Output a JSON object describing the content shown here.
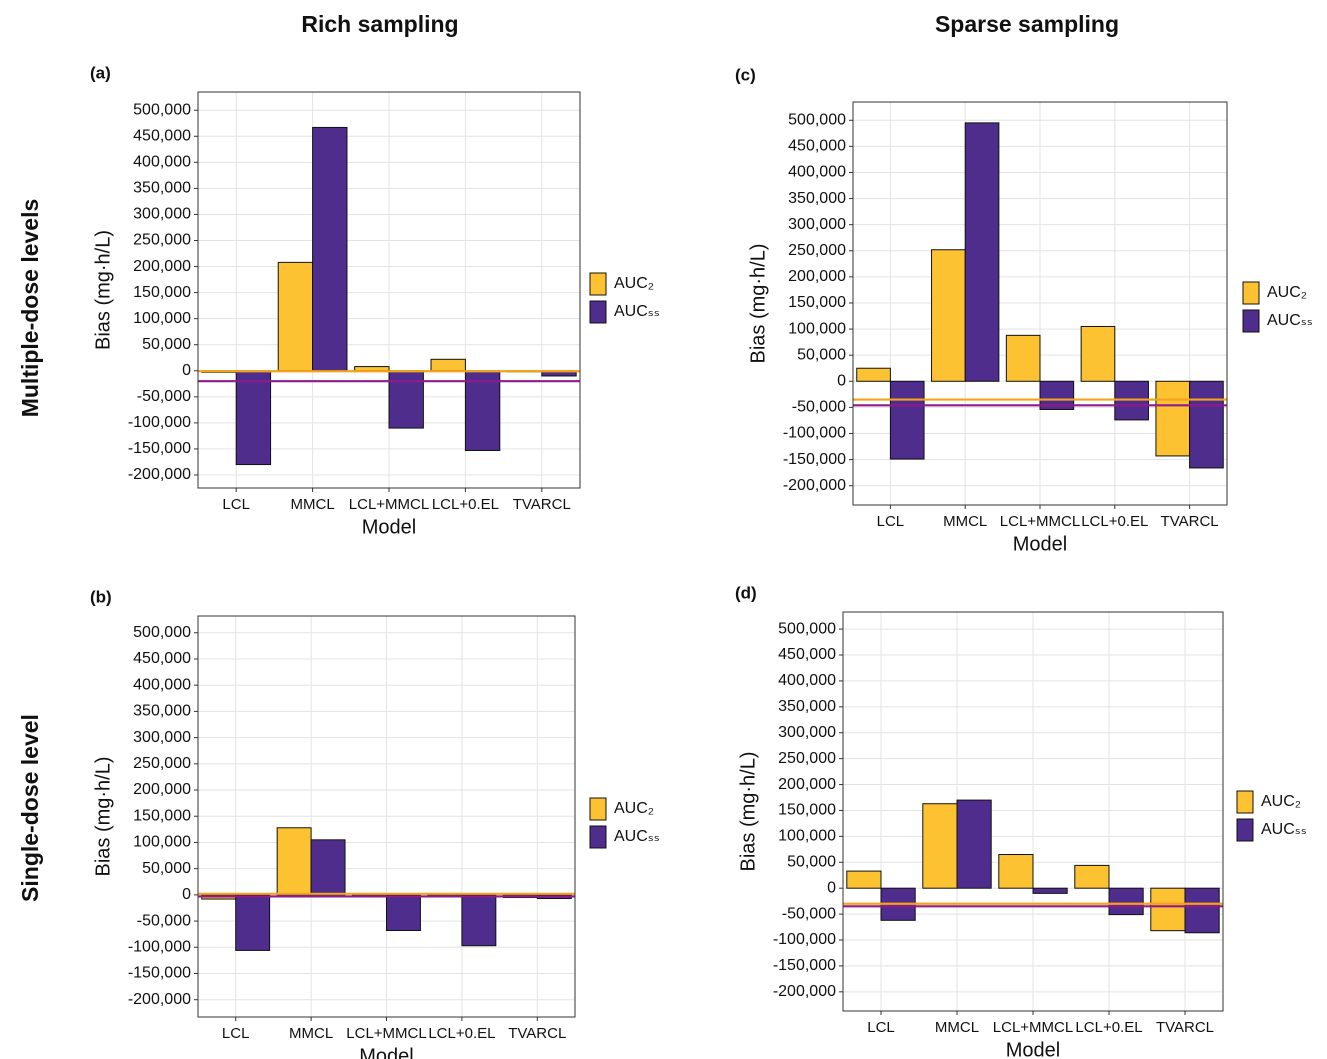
{
  "column_titles": [
    "Rich sampling",
    "Sparse sampling"
  ],
  "row_titles": [
    "Multiple-dose levels",
    "Single-dose level"
  ],
  "chart_data": [
    {
      "type": "bar",
      "panel_label": "(a)",
      "x_label": "Model",
      "y_label": "Bias (mg·h/L)",
      "categories": [
        "LCL",
        "MMCL",
        "LCL+MMCL",
        "LCL+0.EL",
        "TVARCL"
      ],
      "series": [
        {
          "name": "AUC₂",
          "color": "#fdc232",
          "values": [
            -3000,
            208000,
            8000,
            22000,
            -2000
          ]
        },
        {
          "name": "AUCₛₛ",
          "color": "#4f2d8c",
          "values": [
            -180000,
            467000,
            -110000,
            -153000,
            -10000
          ]
        }
      ],
      "hlines": [
        {
          "color": "#f5a31a",
          "value": -1000
        },
        {
          "color": "#8e1b8e",
          "value": -20000
        }
      ],
      "ylim": [
        -225000,
        535000
      ],
      "yticks": [
        {
          "value": -200000,
          "label": "-200,000"
        },
        {
          "value": -150000,
          "label": "-150,000"
        },
        {
          "value": -100000,
          "label": "-100,000"
        },
        {
          "value": -50000,
          "label": "-50,000"
        },
        0,
        {
          "value": 50000,
          "label": "50,000"
        },
        {
          "value": 100000,
          "label": "100,000"
        },
        {
          "value": 150000,
          "label": "150,000"
        },
        {
          "value": 200000,
          "label": "200,000"
        },
        {
          "value": 250000,
          "label": "250,000"
        },
        {
          "value": 300000,
          "label": "300,000"
        },
        {
          "value": 350000,
          "label": "350,000"
        },
        {
          "value": 400000,
          "label": "400,000"
        },
        {
          "value": 450000,
          "label": "450,000"
        },
        {
          "value": 500000,
          "label": "500,000"
        }
      ],
      "grid": true
    },
    {
      "type": "bar",
      "panel_label": "(b)",
      "x_label": "Model",
      "y_label": "Bias (mg·h/L)",
      "categories": [
        "LCL",
        "MMCL",
        "LCL+MMCL",
        "LCL+0.EL",
        "TVARCL"
      ],
      "series": [
        {
          "name": "AUC₂",
          "color": "#fdc232",
          "values": [
            -8000,
            128000,
            -3000,
            -3000,
            -5000
          ]
        },
        {
          "name": "AUCₛₛ",
          "color": "#4f2d8c",
          "values": [
            -106000,
            105000,
            -68000,
            -97000,
            -7000
          ]
        }
      ],
      "hlines": [
        {
          "color": "#f5a31a",
          "value": 2000
        },
        {
          "color": "#8e1b8e",
          "value": -3000
        }
      ],
      "ylim": [
        -233000,
        532000
      ],
      "yticks": [
        {
          "value": -200000,
          "label": "-200,000"
        },
        {
          "value": -150000,
          "label": "-150,000"
        },
        {
          "value": -100000,
          "label": "-100,000"
        },
        {
          "value": -50000,
          "label": "-50,000"
        },
        0,
        {
          "value": 50000,
          "label": "50,000"
        },
        {
          "value": 100000,
          "label": "100,000"
        },
        {
          "value": 150000,
          "label": "150,000"
        },
        {
          "value": 200000,
          "label": "200,000"
        },
        {
          "value": 250000,
          "label": "250,000"
        },
        {
          "value": 300000,
          "label": "300,000"
        },
        {
          "value": 350000,
          "label": "350,000"
        },
        {
          "value": 400000,
          "label": "400,000"
        },
        {
          "value": 450000,
          "label": "450,000"
        },
        {
          "value": 500000,
          "label": "500,000"
        }
      ],
      "grid": true
    },
    {
      "type": "bar",
      "panel_label": "(c)",
      "x_label": "Model",
      "y_label": "Bias (mg·h/L)",
      "categories": [
        "LCL",
        "MMCL",
        "LCL+MMCL",
        "LCL+0.EL",
        "TVARCL"
      ],
      "series": [
        {
          "name": "AUC₂",
          "color": "#fdc232",
          "values": [
            25000,
            252000,
            88000,
            105000,
            -143000
          ]
        },
        {
          "name": "AUCₛₛ",
          "color": "#4f2d8c",
          "values": [
            -149000,
            495000,
            -54000,
            -74000,
            -166000
          ]
        }
      ],
      "hlines": [
        {
          "color": "#f5a31a",
          "value": -35000
        },
        {
          "color": "#8e1b8e",
          "value": -46000
        }
      ],
      "ylim": [
        -237000,
        535000
      ],
      "yticks": [
        {
          "value": -200000,
          "label": "-200,000"
        },
        {
          "value": -150000,
          "label": "-150,000"
        },
        {
          "value": -100000,
          "label": "-100,000"
        },
        {
          "value": -50000,
          "label": "-50,000"
        },
        0,
        {
          "value": 50000,
          "label": "50,000"
        },
        {
          "value": 100000,
          "label": "100,000"
        },
        {
          "value": 150000,
          "label": "150,000"
        },
        {
          "value": 200000,
          "label": "200,000"
        },
        {
          "value": 250000,
          "label": "250,000"
        },
        {
          "value": 300000,
          "label": "300,000"
        },
        {
          "value": 350000,
          "label": "350,000"
        },
        {
          "value": 400000,
          "label": "400,000"
        },
        {
          "value": 450000,
          "label": "450,000"
        },
        {
          "value": 500000,
          "label": "500,000"
        }
      ],
      "grid": true
    },
    {
      "type": "bar",
      "panel_label": "(d)",
      "x_label": "Model",
      "y_label": "Bias (mg·h/L)",
      "categories": [
        "LCL",
        "MMCL",
        "LCL+MMCL",
        "LCL+0.EL",
        "TVARCL"
      ],
      "series": [
        {
          "name": "AUC₂",
          "color": "#fdc232",
          "values": [
            33000,
            163000,
            65000,
            44000,
            -82000
          ]
        },
        {
          "name": "AUCₛₛ",
          "color": "#4f2d8c",
          "values": [
            -62000,
            170000,
            -10000,
            -51000,
            -86000
          ]
        }
      ],
      "hlines": [
        {
          "color": "#f5a31a",
          "value": -30000
        },
        {
          "color": "#8e1b8e",
          "value": -35000
        }
      ],
      "ylim": [
        -237000,
        533000
      ],
      "yticks": [
        {
          "value": -200000,
          "label": "-200,000"
        },
        {
          "value": -150000,
          "label": "-150,000"
        },
        {
          "value": -100000,
          "label": "-100,000"
        },
        {
          "value": -50000,
          "label": "-50,000"
        },
        0,
        {
          "value": 50000,
          "label": "50,000"
        },
        {
          "value": 100000,
          "label": "100,000"
        },
        {
          "value": 150000,
          "label": "150,000"
        },
        {
          "value": 200000,
          "label": "200,000"
        },
        {
          "value": 250000,
          "label": "250,000"
        },
        {
          "value": 300000,
          "label": "300,000"
        },
        {
          "value": 350000,
          "label": "350,000"
        },
        {
          "value": 400000,
          "label": "400,000"
        },
        {
          "value": 450000,
          "label": "450,000"
        },
        {
          "value": 500000,
          "label": "500,000"
        }
      ],
      "grid": true
    }
  ]
}
